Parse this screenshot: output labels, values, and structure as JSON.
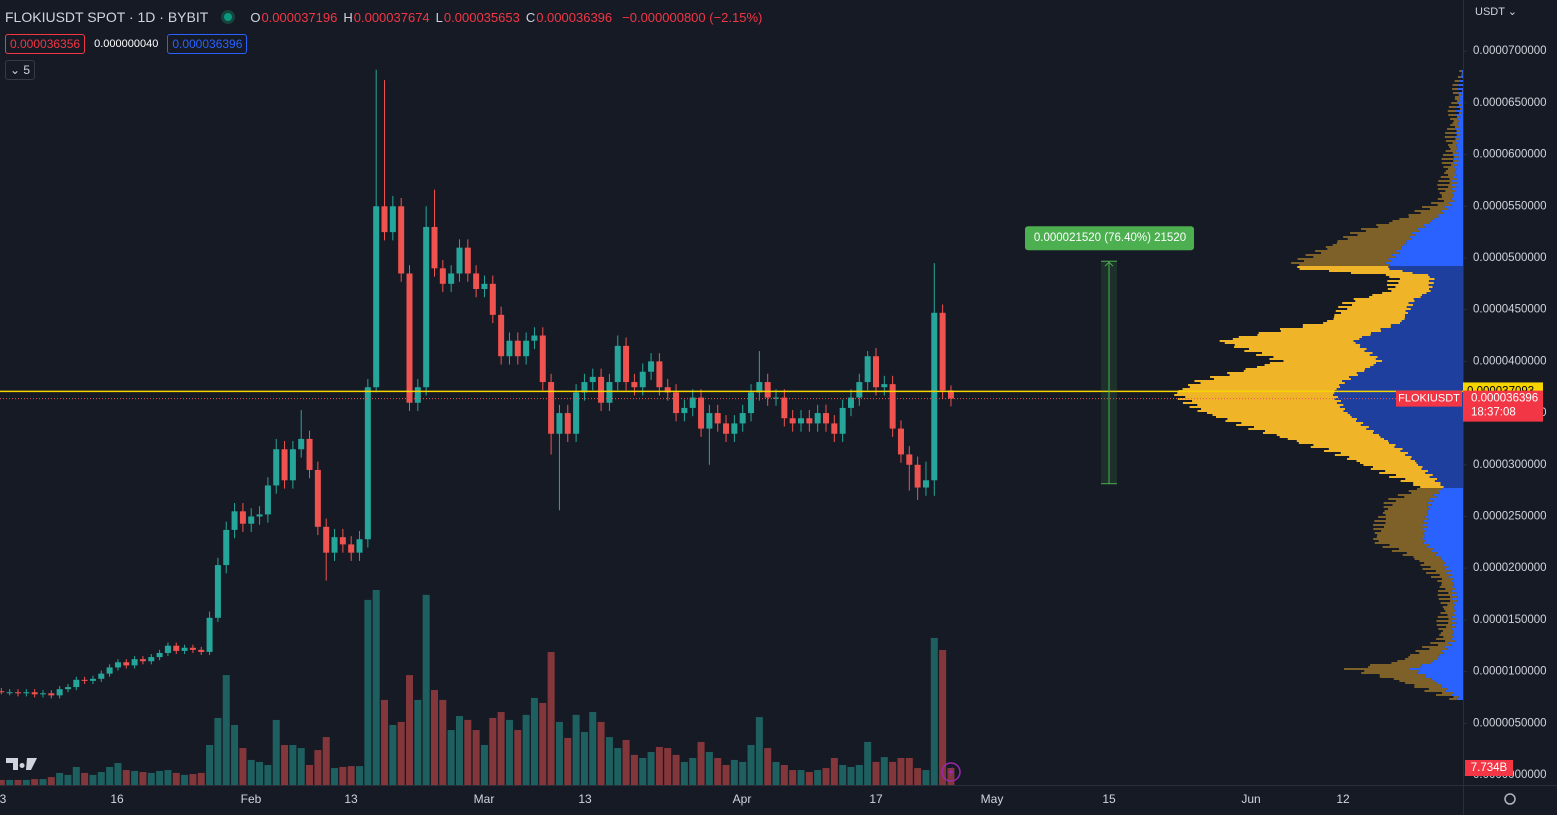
{
  "header": {
    "symbol": "FLOKIUSDT SPOT · 1D · BYBIT",
    "ohlc": [
      {
        "key": "O",
        "value": "0.000037196"
      },
      {
        "key": "H",
        "value": "0.000037674"
      },
      {
        "key": "L",
        "value": "0.000035653"
      },
      {
        "key": "C",
        "value": "0.000036396"
      }
    ],
    "change": "−0.000000800 (−2.15%)",
    "bid": "0.000036356",
    "spread": "0.000000040",
    "ask": "0.000036396",
    "indicators": "5"
  },
  "currency": "USDT",
  "chart_data": {
    "type": "candlestick",
    "open": [
      8.1e-06,
      8e-06,
      8e-06,
      7.9e-06,
      8e-06,
      7.8e-06,
      7.9e-06,
      7.7e-06,
      8.3e-06,
      8.5e-06,
      9.2e-06,
      9.1e-06,
      9.3e-06,
      9.8e-06,
      1.04e-05,
      1.09e-05,
      1.06e-05,
      1.12e-05,
      1.1e-05,
      1.14e-05,
      1.18e-05,
      1.25e-05,
      1.2e-05,
      1.23e-05,
      1.21e-05,
      1.19e-05,
      1.52e-05,
      2.03e-05,
      2.37e-05,
      2.55e-05,
      2.43e-05,
      2.5e-05,
      2.52e-05,
      2.8e-05,
      3.15e-05,
      2.85e-05,
      3.15e-05,
      3.25e-05,
      2.95e-05,
      2.4e-05,
      2.15e-05,
      2.3e-05,
      2.23e-05,
      2.15e-05,
      2.28e-05,
      3.75e-05,
      5.5e-05,
      5.25e-05,
      5.5e-05,
      4.85e-05,
      3.6e-05,
      3.75e-05,
      5.3e-05,
      4.9e-05,
      4.75e-05,
      4.85e-05,
      5.1e-05,
      4.85e-05,
      4.7e-05,
      4.75e-05,
      4.45e-05,
      4.05e-05,
      4.2e-05,
      4.05e-05,
      4.2e-05,
      4.25e-05,
      3.8e-05,
      3.3e-05,
      3.5e-05,
      3.3e-05,
      3.7e-05,
      3.8e-05,
      3.85e-05,
      3.6e-05,
      3.8e-05,
      4.15e-05,
      3.8e-05,
      3.75e-05,
      3.9e-05,
      4e-05,
      3.75e-05,
      3.7e-05,
      3.5e-05,
      3.55e-05,
      3.65e-05,
      3.35e-05,
      3.5e-05,
      3.4e-05,
      3.3e-05,
      3.4e-05,
      3.5e-05,
      3.7e-05,
      3.8e-05,
      3.65e-05,
      3.65e-05,
      3.45e-05,
      3.4e-05,
      3.45e-05,
      3.4e-05,
      3.5e-05,
      3.4e-05,
      3.3e-05,
      3.55e-05,
      3.65e-05,
      3.8e-05,
      4.05e-05,
      3.75e-05,
      3.78e-05,
      3.35e-05,
      3.1e-05,
      3e-05,
      2.78e-05,
      2.85e-05,
      4.47e-05,
      3.7196e-05
    ],
    "high": [
      8.4e-06,
      8.3e-06,
      8.3e-06,
      8.3e-06,
      8.3e-06,
      8.2e-06,
      8.2e-06,
      8.6e-06,
      8.8e-06,
      9.5e-06,
      9.5e-06,
      9.6e-06,
      1.01e-05,
      1.07e-05,
      1.12e-05,
      1.12e-05,
      1.15e-05,
      1.15e-05,
      1.17e-05,
      1.21e-05,
      1.28e-05,
      1.28e-05,
      1.26e-05,
      1.26e-05,
      1.24e-05,
      1.58e-05,
      2.1e-05,
      2.45e-05,
      2.63e-05,
      2.63e-05,
      2.58e-05,
      2.6e-05,
      2.88e-05,
      3.25e-05,
      3.23e-05,
      3.23e-05,
      3.53e-05,
      3.33e-05,
      3.03e-05,
      2.48e-05,
      2.38e-05,
      2.38e-05,
      2.31e-05,
      2.36e-05,
      3.83e-05,
      6.82e-05,
      6.72e-05,
      5.6e-05,
      5.58e-05,
      4.93e-05,
      3.83e-05,
      5.5e-05,
      5.66e-05,
      4.98e-05,
      4.93e-05,
      5.18e-05,
      5.18e-05,
      4.93e-05,
      4.83e-05,
      4.83e-05,
      4.53e-05,
      4.28e-05,
      4.28e-05,
      4.28e-05,
      4.33e-05,
      4.33e-05,
      3.88e-05,
      3.58e-05,
      3.58e-05,
      3.78e-05,
      3.88e-05,
      3.93e-05,
      3.93e-05,
      3.88e-05,
      4.25e-05,
      4.23e-05,
      3.88e-05,
      3.98e-05,
      4.08e-05,
      4.08e-05,
      3.83e-05,
      3.78e-05,
      3.63e-05,
      3.73e-05,
      3.73e-05,
      3.58e-05,
      3.58e-05,
      3.48e-05,
      3.48e-05,
      3.58e-05,
      3.78e-05,
      4.1e-05,
      3.88e-05,
      3.73e-05,
      3.73e-05,
      3.53e-05,
      3.53e-05,
      3.53e-05,
      3.58e-05,
      3.58e-05,
      3.48e-05,
      3.63e-05,
      3.73e-05,
      3.88e-05,
      4.1e-05,
      4.13e-05,
      3.86e-05,
      3.86e-05,
      3.43e-05,
      3.18e-05,
      3.08e-05,
      3.03e-05,
      4.95e-05,
      4.55e-05,
      3.7674e-05
    ],
    "low": [
      7.8e-06,
      7.7e-06,
      7.6e-06,
      7.6e-06,
      7.5e-06,
      7.5e-06,
      7.4e-06,
      7.4e-06,
      8e-06,
      8.2e-06,
      8.8e-06,
      8.8e-06,
      9e-06,
      9.5e-06,
      1.01e-05,
      1.03e-05,
      1.03e-05,
      1.07e-05,
      1.07e-05,
      1.11e-05,
      1.15e-05,
      1.17e-05,
      1.17e-05,
      1.18e-05,
      1.16e-05,
      1.16e-05,
      1.48e-05,
      1.95e-05,
      2.29e-05,
      2.35e-05,
      2.35e-05,
      2.42e-05,
      2.44e-05,
      2.72e-05,
      2.77e-05,
      2.77e-05,
      3.07e-05,
      2.87e-05,
      2.32e-05,
      1.88e-05,
      2.07e-05,
      2.15e-05,
      2.07e-05,
      2.07e-05,
      2.2e-05,
      3.7e-05,
      5.17e-05,
      5.17e-05,
      4.77e-05,
      3.52e-05,
      3.52e-05,
      3.67e-05,
      4.82e-05,
      4.67e-05,
      4.67e-05,
      4.77e-05,
      4.77e-05,
      4.62e-05,
      4.62e-05,
      4.37e-05,
      3.97e-05,
      3.97e-05,
      3.97e-05,
      3.97e-05,
      4.12e-05,
      3.72e-05,
      3.1e-05,
      2.56e-05,
      3.22e-05,
      3.22e-05,
      3.62e-05,
      3.72e-05,
      3.52e-05,
      3.52e-05,
      3.72e-05,
      3.72e-05,
      3.67e-05,
      3.67e-05,
      3.82e-05,
      3.67e-05,
      3.62e-05,
      3.42e-05,
      3.42e-05,
      3.47e-05,
      3.27e-05,
      3e-05,
      3.32e-05,
      3.22e-05,
      3.22e-05,
      3.32e-05,
      3.42e-05,
      3.62e-05,
      3.57e-05,
      3.57e-05,
      3.37e-05,
      3.32e-05,
      3.32e-05,
      3.32e-05,
      3.32e-05,
      3.32e-05,
      3.22e-05,
      3.22e-05,
      3.47e-05,
      3.57e-05,
      3.72e-05,
      3.67e-05,
      3.67e-05,
      3.27e-05,
      3.02e-05,
      2.75e-05,
      2.66e-05,
      2.7e-05,
      2.7e-05,
      3.64e-05,
      3.5653e-05
    ],
    "close": [
      8e-06,
      8e-06,
      7.9e-06,
      8e-06,
      7.8e-06,
      7.9e-06,
      7.7e-06,
      8.3e-06,
      8.5e-06,
      9.2e-06,
      9.1e-06,
      9.3e-06,
      9.8e-06,
      1.04e-05,
      1.09e-05,
      1.06e-05,
      1.12e-05,
      1.1e-05,
      1.14e-05,
      1.18e-05,
      1.25e-05,
      1.2e-05,
      1.23e-05,
      1.21e-05,
      1.19e-05,
      1.52e-05,
      2.03e-05,
      2.37e-05,
      2.55e-05,
      2.43e-05,
      2.5e-05,
      2.52e-05,
      2.8e-05,
      3.15e-05,
      2.85e-05,
      3.15e-05,
      3.25e-05,
      2.95e-05,
      2.4e-05,
      2.15e-05,
      2.3e-05,
      2.23e-05,
      2.15e-05,
      2.28e-05,
      3.75e-05,
      5.5e-05,
      5.25e-05,
      5.5e-05,
      4.85e-05,
      3.6e-05,
      3.75e-05,
      5.3e-05,
      4.9e-05,
      4.75e-05,
      4.85e-05,
      5.1e-05,
      4.85e-05,
      4.7e-05,
      4.75e-05,
      4.45e-05,
      4.05e-05,
      4.2e-05,
      4.05e-05,
      4.2e-05,
      4.25e-05,
      3.8e-05,
      3.3e-05,
      3.5e-05,
      3.3e-05,
      3.7e-05,
      3.8e-05,
      3.85e-05,
      3.6e-05,
      3.8e-05,
      4.15e-05,
      3.8e-05,
      3.75e-05,
      3.9e-05,
      4e-05,
      3.75e-05,
      3.7e-05,
      3.5e-05,
      3.55e-05,
      3.65e-05,
      3.35e-05,
      3.5e-05,
      3.4e-05,
      3.3e-05,
      3.4e-05,
      3.5e-05,
      3.7e-05,
      3.8e-05,
      3.65e-05,
      3.65e-05,
      3.45e-05,
      3.4e-05,
      3.45e-05,
      3.4e-05,
      3.5e-05,
      3.4e-05,
      3.3e-05,
      3.55e-05,
      3.65e-05,
      3.8e-05,
      4.05e-05,
      3.75e-05,
      3.78e-05,
      3.35e-05,
      3.1e-05,
      3e-05,
      2.78e-05,
      2.85e-05,
      4.47e-05,
      3.7196e-05,
      3.6396e-05
    ],
    "volume": [
      2300000000.0,
      2300000000.0,
      2300000000.0,
      2300000000.0,
      2700000000.0,
      2700000000.0,
      3600000000.0,
      5500000000.0,
      4600000000.0,
      8200000000.0,
      5500000000.0,
      4600000000.0,
      5900000000.0,
      8200000000.0,
      10000000000.0,
      6800000000.0,
      6400000000.0,
      5900000000.0,
      5500000000.0,
      6400000000.0,
      6800000000.0,
      5500000000.0,
      4600000000.0,
      5000000000.0,
      5500000000.0,
      18200000000.0,
      30500000000.0,
      50000000000.0,
      27300000000.0,
      16800000000.0,
      11400000000.0,
      10500000000.0,
      9100000000.0,
      29600000000.0,
      18200000000.0,
      18200000000.0,
      16800000000.0,
      9100000000.0,
      15900000000.0,
      21800000000.0,
      7700000000.0,
      8200000000.0,
      8600000000.0,
      8600000000.0,
      84200000000.0,
      88700000000.0,
      38700000000.0,
      27300000000.0,
      28700000000.0,
      50000000000.0,
      38700000000.0,
      86500000000.0,
      43200000000.0,
      38700000000.0,
      25000000000.0,
      31400000000.0,
      29600000000.0,
      25000000000.0,
      18200000000.0,
      30500000000.0,
      33200000000.0,
      29600000000.0,
      25000000000.0,
      31900000000.0,
      39600000000.0,
      37300000000.0,
      60500000000.0,
      28700000000.0,
      21400000000.0,
      31900000000.0,
      24100000000.0,
      33200000000.0,
      28700000000.0,
      21800000000.0,
      16800000000.0,
      20500000000.0,
      13700000000.0,
      12300000000.0,
      15000000000.0,
      17300000000.0,
      16800000000.0,
      13700000000.0,
      10500000000.0,
      12300000000.0,
      19600000000.0,
      15000000000.0,
      12300000000.0,
      9100000000.0,
      11400000000.0,
      10500000000.0,
      18200000000.0,
      30900000000.0,
      16800000000.0,
      10500000000.0,
      9100000000.0,
      6800000000.0,
      6800000000.0,
      5900000000.0,
      6800000000.0,
      7700000000.0,
      12300000000.0,
      9100000000.0,
      8200000000.0,
      9100000000.0,
      19600000000.0,
      10500000000.0,
      12700000000.0,
      10500000000.0,
      12300000000.0,
      12300000000.0,
      7700000000.0,
      6800000000.0,
      66900000000.0,
      61400000000.0,
      7734000000.0
    ],
    "volume_label": "7.734B",
    "up_color": "#26a69a",
    "down_color": "#ef5350",
    "ylim": [
      -9.7e-07,
      7.495e-05
    ],
    "yticks": [
      {
        "value": 0,
        "label": "0.0000000000"
      },
      {
        "value": 5e-06,
        "label": "0.0000050000"
      },
      {
        "value": 1e-05,
        "label": "0.0000100000"
      },
      {
        "value": 1.5e-05,
        "label": "0.0000150000"
      },
      {
        "value": 2e-05,
        "label": "0.0000200000"
      },
      {
        "value": 2.5e-05,
        "label": "0.0000250000"
      },
      {
        "value": 3e-05,
        "label": "0.0000300000"
      },
      {
        "value": 3.5e-05,
        "label": "0.0000350000"
      },
      {
        "value": 4e-05,
        "label": "0.0000400000"
      },
      {
        "value": 4.5e-05,
        "label": "0.0000450000"
      },
      {
        "value": 5e-05,
        "label": "0.0000500000"
      },
      {
        "value": 5.5e-05,
        "label": "0.0000550000"
      },
      {
        "value": 6e-05,
        "label": "0.0000600000"
      },
      {
        "value": 6.5e-05,
        "label": "0.0000650000"
      },
      {
        "value": 7e-05,
        "label": "0.0000700000"
      }
    ],
    "grid": false,
    "x_labels": [
      "3",
      "16",
      "Feb",
      "13",
      "Mar",
      "13",
      "Apr",
      "17",
      "May",
      "15",
      "Jun",
      "12"
    ],
    "price_line": {
      "value": 3.7093e-05,
      "label": "0.000037093",
      "color": "#f5d400"
    },
    "last_price": {
      "name": "FLOKIUSDT",
      "label": "0.000036396",
      "countdown": "18:37:08"
    },
    "measure": {
      "from": 2.8168e-05,
      "to": 4.9688e-05,
      "label": "0.000021520 (76.40%) 21520"
    }
  }
}
